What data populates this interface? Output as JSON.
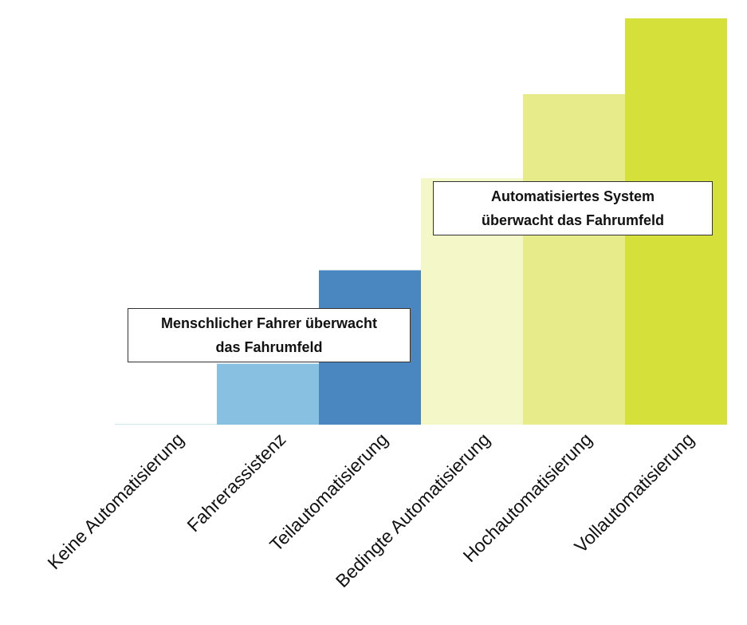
{
  "chart_data": {
    "type": "bar",
    "categories": [
      "Keine Automatisierung",
      "Fahrerassistenz",
      "Teilautomatisierung",
      "Bedingte Automatisierung",
      "Hochautomatisierung",
      "Vollautomatisierung"
    ],
    "values": [
      0.05,
      4.5,
      11.4,
      18.2,
      24.4,
      30
    ],
    "colors": [
      "#cfe6f3",
      "#87c0e0",
      "#4a86c0",
      "#f4f7c8",
      "#e7eb8a",
      "#d6e03a"
    ],
    "ylim": [
      0,
      31
    ],
    "grid": false,
    "axes_visible": false
  },
  "callouts": {
    "human": {
      "line1": "Menschlicher Fahrer überwacht",
      "line2": "das Fahrumfeld"
    },
    "system": {
      "line1": "Automatisiertes System",
      "line2": "überwacht das Fahrumfeld"
    }
  }
}
